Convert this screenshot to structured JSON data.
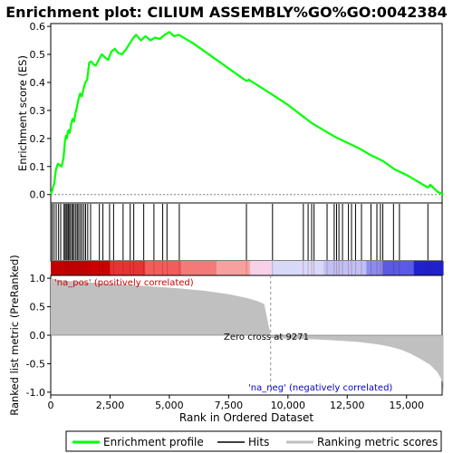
{
  "chart_data": {
    "type": "line",
    "title": "Enrichment plot: CILIUM ASSEMBLY%GO%GO:0042384",
    "xlabel": "Rank in Ordered Dataset",
    "top_panel": {
      "ylabel": "Enrichment score (ES)",
      "xlim": [
        0,
        16500
      ],
      "ylim": [
        -0.03,
        0.61
      ],
      "yticks": [
        0.0,
        0.1,
        0.2,
        0.3,
        0.4,
        0.5,
        0.6
      ],
      "ytick_labels": [
        "0.0",
        "0.1",
        "0.2",
        "0.3",
        "0.4",
        "0.5",
        "0.6"
      ],
      "series": [
        {
          "name": "Enrichment profile",
          "color": "#00ff00",
          "x": [
            0,
            80,
            150,
            220,
            300,
            380,
            460,
            540,
            600,
            640,
            680,
            720,
            760,
            800,
            860,
            920,
            980,
            1040,
            1100,
            1170,
            1240,
            1310,
            1390,
            1460,
            1540,
            1620,
            1700,
            1800,
            1900,
            2020,
            2150,
            2280,
            2420,
            2560,
            2700,
            2850,
            3000,
            3150,
            3300,
            3450,
            3600,
            3800,
            4000,
            4200,
            4400,
            4600,
            4800,
            5000,
            5200,
            5400,
            6000,
            7000,
            8000,
            8250,
            8350,
            9000,
            10000,
            11000,
            12000,
            13000,
            13500,
            14000,
            14500,
            15000,
            15500,
            15900,
            16000,
            16300,
            16550
          ],
          "y": [
            0.0,
            0.02,
            0.04,
            0.09,
            0.11,
            0.105,
            0.1,
            0.13,
            0.19,
            0.21,
            0.2,
            0.225,
            0.23,
            0.22,
            0.25,
            0.27,
            0.26,
            0.29,
            0.31,
            0.34,
            0.36,
            0.35,
            0.38,
            0.4,
            0.41,
            0.47,
            0.475,
            0.465,
            0.46,
            0.48,
            0.5,
            0.49,
            0.48,
            0.51,
            0.52,
            0.505,
            0.5,
            0.515,
            0.535,
            0.555,
            0.57,
            0.55,
            0.565,
            0.55,
            0.56,
            0.555,
            0.57,
            0.58,
            0.565,
            0.57,
            0.54,
            0.48,
            0.42,
            0.405,
            0.41,
            0.375,
            0.32,
            0.255,
            0.205,
            0.165,
            0.14,
            0.12,
            0.09,
            0.07,
            0.045,
            0.025,
            0.035,
            0.01,
            0.0
          ]
        }
      ]
    },
    "hits": [
      60,
      140,
      230,
      330,
      420,
      560,
      610,
      660,
      720,
      760,
      810,
      880,
      930,
      990,
      1060,
      1120,
      1180,
      1250,
      1320,
      1400,
      1470,
      1560,
      1680,
      2050,
      2200,
      2480,
      2650,
      3050,
      3350,
      3500,
      3920,
      4350,
      4720,
      4900,
      5420,
      8250,
      9350,
      10650,
      10850,
      11000,
      11100,
      11650,
      11950,
      12050,
      12150,
      12300,
      12550,
      12680,
      12850,
      13100,
      13500,
      13750,
      13900,
      14000,
      14450,
      14700,
      15900
    ],
    "hits_legend": "Hits",
    "bottom_panel": {
      "ylabel": "Ranked list metric (PreRanked)",
      "ylim": [
        -1.05,
        1.05
      ],
      "yticks": [
        1.0,
        0.5,
        0.0,
        -0.5,
        -1.0
      ],
      "ytick_labels": [
        "1.0",
        "0.5",
        "0.0",
        "-0.5",
        "-1.0"
      ],
      "series_name": "Ranking metric scores",
      "fill_color": "#c0c0c0",
      "metric_profile": {
        "rank": [
          0,
          300,
          800,
          1500,
          2500,
          3500,
          4500,
          5500,
          6500,
          7500,
          8300,
          8700,
          9000,
          9271,
          9300,
          10000,
          11000,
          12000,
          13000,
          13800,
          14300,
          14800,
          15200,
          15600,
          16000,
          16300,
          16500,
          16560
        ],
        "score": [
          1.0,
          0.97,
          0.95,
          0.93,
          0.9,
          0.88,
          0.85,
          0.82,
          0.78,
          0.72,
          0.65,
          0.6,
          0.55,
          0.0,
          -0.05,
          -0.06,
          -0.07,
          -0.09,
          -0.12,
          -0.16,
          -0.2,
          -0.26,
          -0.33,
          -0.42,
          -0.52,
          -0.65,
          -0.8,
          -1.0
        ]
      },
      "annotations": {
        "pos_label": "'na_pos' (positively correlated)",
        "neg_label": "'na_neg' (negatively correlated)",
        "zero_cross_label": "Zero cross at 9271",
        "zero_cross": 9271
      }
    },
    "xticks": [
      0,
      2500,
      5000,
      7500,
      10000,
      12500,
      15000
    ],
    "xtick_labels": [
      "0",
      "2,500",
      "5,000",
      "7,500",
      "10,000",
      "12,500",
      "15,000"
    ],
    "color_bar": {
      "segments": [
        {
          "from": 0,
          "to": 2500,
          "color": "#cc0000"
        },
        {
          "from": 2500,
          "to": 4000,
          "color": "#e63333"
        },
        {
          "from": 4000,
          "to": 5500,
          "color": "#f25c5c"
        },
        {
          "from": 5500,
          "to": 7000,
          "color": "#f47a7a"
        },
        {
          "from": 7000,
          "to": 8400,
          "color": "#f8a0a0"
        },
        {
          "from": 8400,
          "to": 9300,
          "color": "#f8d0e8"
        },
        {
          "from": 9300,
          "to": 11500,
          "color": "#d8d8f8"
        },
        {
          "from": 11500,
          "to": 13300,
          "color": "#c0c0f4"
        },
        {
          "from": 13300,
          "to": 14000,
          "color": "#8c8cf0"
        },
        {
          "from": 14000,
          "to": 15300,
          "color": "#5a5ae6"
        },
        {
          "from": 15300,
          "to": 16560,
          "color": "#2020cc"
        }
      ]
    },
    "legend": {
      "placement": "bottom",
      "items": [
        "Enrichment profile",
        "Hits",
        "Ranking metric scores"
      ]
    }
  }
}
